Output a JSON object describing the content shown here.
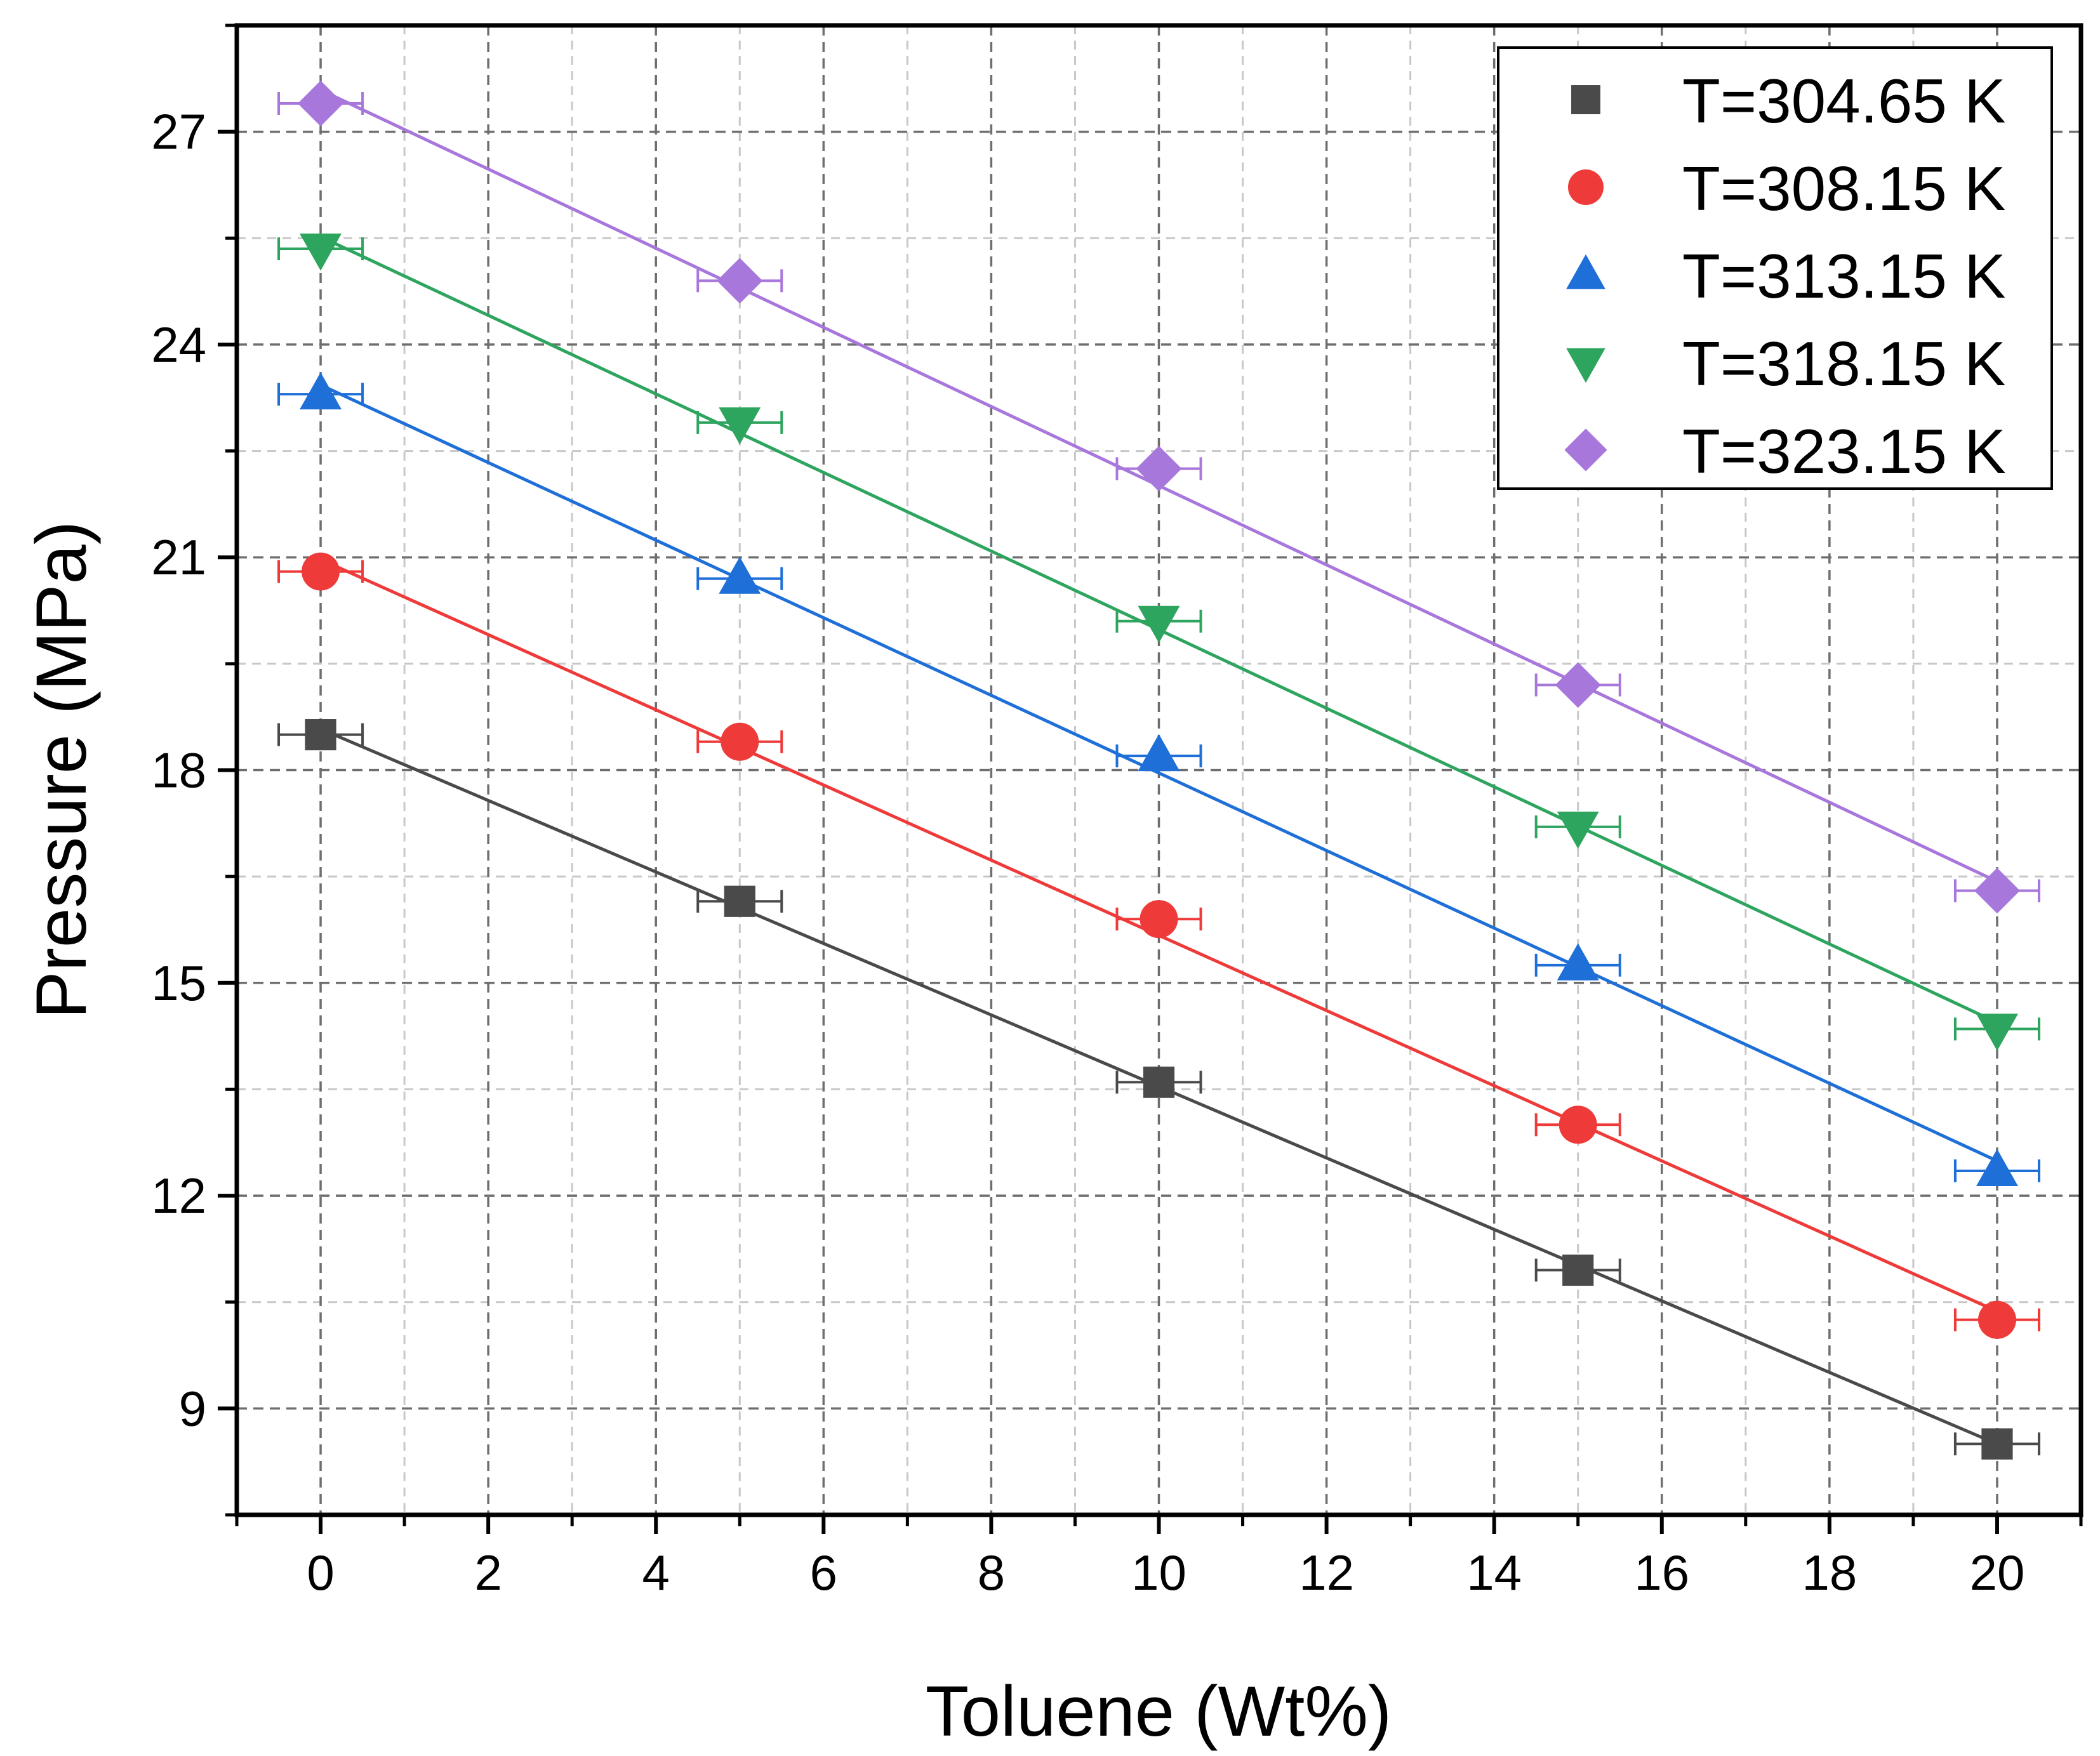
{
  "chart_data": {
    "type": "scatter",
    "title": "",
    "xlabel": "Toluene (Wt%)",
    "ylabel": "Pressure (MPa)",
    "xlim": [
      -1,
      21
    ],
    "ylim": [
      7.5,
      28.5
    ],
    "x_ticks": [
      0,
      2,
      4,
      6,
      8,
      10,
      12,
      14,
      16,
      18,
      20
    ],
    "y_ticks": [
      9,
      12,
      15,
      18,
      21,
      24,
      27
    ],
    "grid": true,
    "legend_position": "top-right",
    "x": [
      0,
      5,
      10,
      15,
      20
    ],
    "x_error": 0.5,
    "series": [
      {
        "name": "T=304.65 K",
        "marker": "square",
        "color": "#4a4a4a",
        "values": [
          18.5,
          16.15,
          13.6,
          10.95,
          8.5
        ],
        "fit_line": true
      },
      {
        "name": "T=308.15 K",
        "marker": "circle",
        "color": "#ef3a3a",
        "values": [
          20.8,
          18.4,
          15.9,
          13.0,
          10.25
        ],
        "fit_line": true
      },
      {
        "name": "T=313.15 K",
        "marker": "triangle-up",
        "color": "#1f6fd8",
        "values": [
          23.3,
          20.7,
          18.2,
          15.25,
          12.35
        ],
        "fit_line": true
      },
      {
        "name": "T=318.15 K",
        "marker": "triangle-down",
        "color": "#2ea55f",
        "values": [
          25.35,
          22.9,
          20.1,
          17.2,
          14.35
        ],
        "fit_line": true
      },
      {
        "name": "T=323.15 K",
        "marker": "diamond",
        "color": "#a877db",
        "values": [
          27.4,
          24.9,
          22.25,
          19.2,
          16.3
        ],
        "fit_line": true
      }
    ]
  }
}
